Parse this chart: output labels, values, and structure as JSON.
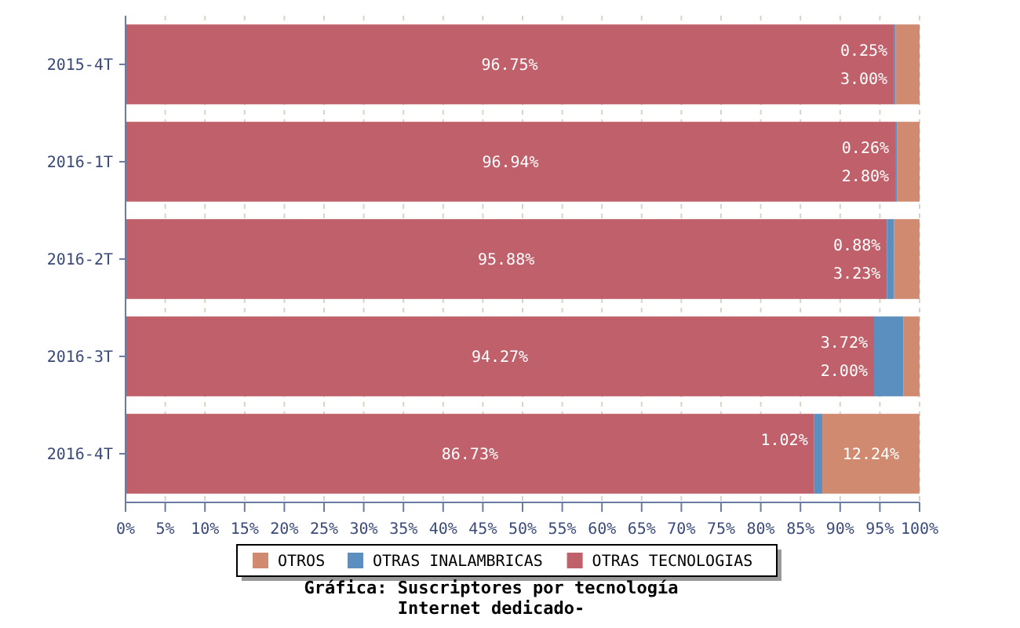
{
  "chart_data": {
    "type": "bar",
    "orientation": "horizontal",
    "stacked": true,
    "title": "Gráfica: Suscriptores por tecnología",
    "subtitle": "Internet dedicado-",
    "categories": [
      "2015-4T",
      "2016-1T",
      "2016-2T",
      "2016-3T",
      "2016-4T"
    ],
    "series": [
      {
        "name": "OTRAS TECNOLOGIAS",
        "color": "#c0606a",
        "values": [
          96.75,
          96.94,
          95.88,
          94.27,
          86.73
        ],
        "value_labels": [
          "96.75%",
          "96.94%",
          "95.88%",
          "94.27%",
          "86.73%"
        ]
      },
      {
        "name": "OTRAS INALAMBRICAS",
        "color": "#5b8fc0",
        "values": [
          0.25,
          0.26,
          0.88,
          3.72,
          1.02
        ],
        "value_labels": [
          "0.25%",
          "0.26%",
          "0.88%",
          "3.72%",
          "1.02%"
        ]
      },
      {
        "name": "OTROS",
        "color": "#d08a70",
        "values": [
          3.0,
          2.8,
          3.23,
          2.0,
          12.24
        ],
        "value_labels": [
          "3.00%",
          "2.80%",
          "3.23%",
          "2.00%",
          "12.24%"
        ]
      }
    ],
    "xlim": [
      0,
      100
    ],
    "xticks": [
      {
        "value": 0,
        "label": "0%"
      },
      {
        "value": 5,
        "label": "5%"
      },
      {
        "value": 10,
        "label": "10%"
      },
      {
        "value": 15,
        "label": "15%"
      },
      {
        "value": 20,
        "label": "20%"
      },
      {
        "value": 25,
        "label": "25%"
      },
      {
        "value": 30,
        "label": "30%"
      },
      {
        "value": 35,
        "label": "35%"
      },
      {
        "value": 40,
        "label": "40%"
      },
      {
        "value": 45,
        "label": "45%"
      },
      {
        "value": 50,
        "label": "50%"
      },
      {
        "value": 55,
        "label": "55%"
      },
      {
        "value": 60,
        "label": "60%"
      },
      {
        "value": 65,
        "label": "65%"
      },
      {
        "value": 70,
        "label": "70%"
      },
      {
        "value": 75,
        "label": "75%"
      },
      {
        "value": 80,
        "label": "80%"
      },
      {
        "value": 85,
        "label": "85%"
      },
      {
        "value": 90,
        "label": "90%"
      },
      {
        "value": 95,
        "label": "95%"
      },
      {
        "value": 100,
        "label": "100%"
      }
    ],
    "grid": "x",
    "legend": "bottom"
  }
}
